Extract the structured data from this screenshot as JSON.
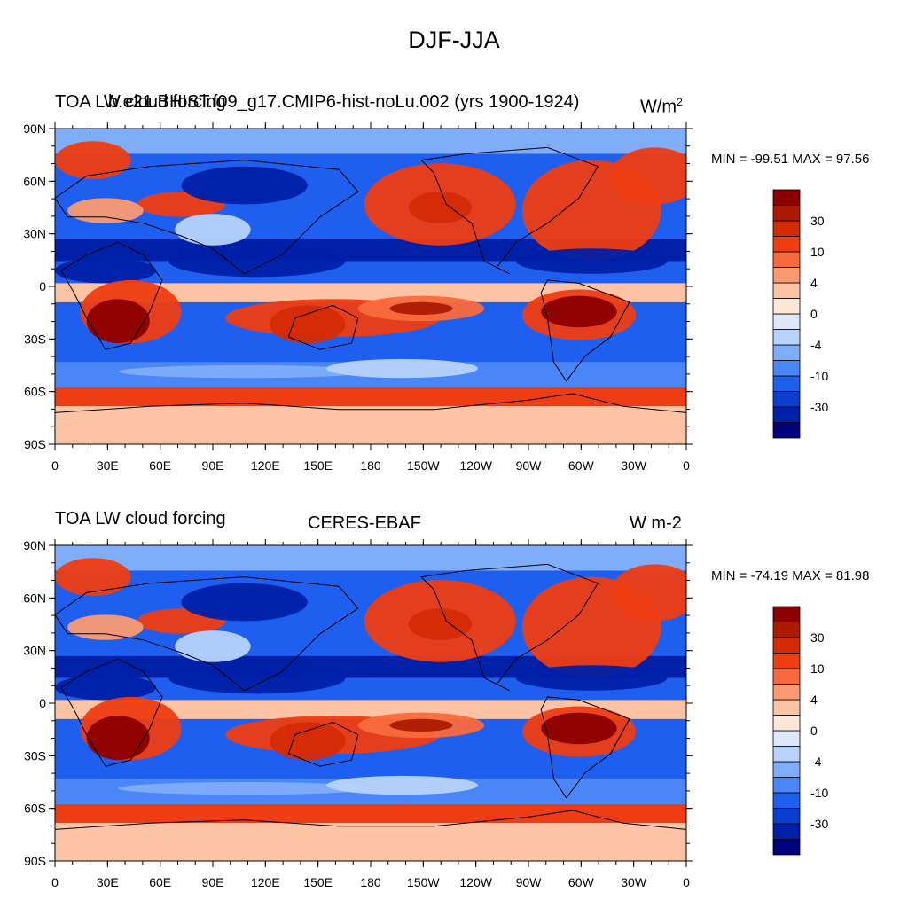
{
  "title": "DJF-JJA",
  "panels": [
    {
      "left_label": "TOA LW cloud forcing",
      "center_label": "b.e21.BHIST.f09_g17.CMIP6-hist-noLu.002 (yrs 1900-1924)",
      "units": "W/m",
      "units_sup": "2",
      "minmax": "MIN = -99.51 MAX =  97.56"
    },
    {
      "left_label": "TOA LW cloud forcing",
      "center_label": "CERES-EBAF",
      "units": "W m-2",
      "units_sup": "",
      "minmax": "MIN = -74.19 MAX =  81.98"
    }
  ],
  "axes": {
    "lat_ticks": [
      "90N",
      "60N",
      "30N",
      "0",
      "30S",
      "60S",
      "90S"
    ],
    "lon_ticks": [
      "0",
      "30E",
      "60E",
      "90E",
      "120E",
      "150E",
      "180",
      "150W",
      "120W",
      "90W",
      "60W",
      "30W",
      "0"
    ]
  },
  "colorbar": {
    "colors": [
      "#000080",
      "#0020a8",
      "#0a3dd0",
      "#1f5ff0",
      "#4a86f7",
      "#7fadf9",
      "#b7d3fb",
      "#dde9fb",
      "#fde7d6",
      "#fcc3a4",
      "#fb9a70",
      "#f86a3d",
      "#ee3d12",
      "#d42a05",
      "#ad1a02",
      "#8b0000"
    ],
    "labels": [
      "30",
      "10",
      "4",
      "0",
      "-4",
      "-10",
      "-30"
    ]
  },
  "colors": {
    "ocean_neg": "#1f5ff0",
    "ocean_deep": "#0020a8",
    "pos": "#ee3d12",
    "pos_dark": "#8b0000",
    "light_pos": "#fcc3a4",
    "light_neg": "#7fadf9",
    "coast": "#000000"
  }
}
